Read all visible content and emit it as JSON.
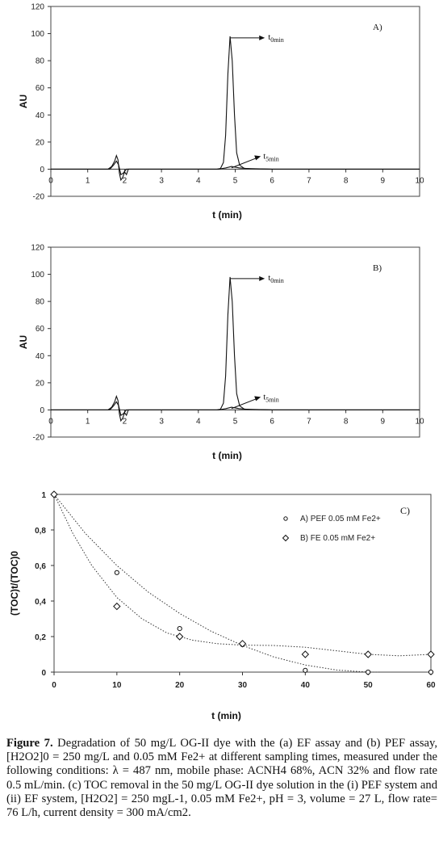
{
  "chart_data": [
    {
      "type": "line",
      "panel_label": "A)",
      "ylabel": "AU",
      "xlabel": "t (min)",
      "xlim": [
        0,
        10
      ],
      "ylim": [
        -20,
        120
      ],
      "x_ticks": [
        0,
        1,
        2,
        3,
        4,
        5,
        6,
        7,
        8,
        9,
        10
      ],
      "y_ticks": [
        -20,
        0,
        20,
        40,
        60,
        80,
        100,
        120
      ],
      "annotations": [
        "t0min",
        "t5min"
      ],
      "series": [
        {
          "values": [
            [
              0,
              0
            ],
            [
              1.55,
              0
            ],
            [
              1.65,
              2
            ],
            [
              1.73,
              6
            ],
            [
              1.78,
              10
            ],
            [
              1.82,
              7
            ],
            [
              1.86,
              -3
            ],
            [
              1.9,
              -8
            ],
            [
              1.95,
              -6
            ],
            [
              2.0,
              -2
            ],
            [
              2.05,
              -4
            ],
            [
              2.1,
              0
            ],
            [
              3.5,
              0
            ],
            [
              4.5,
              0
            ],
            [
              4.6,
              0.5
            ],
            [
              4.68,
              5
            ],
            [
              4.74,
              25
            ],
            [
              4.8,
              70
            ],
            [
              4.86,
              98
            ],
            [
              4.92,
              80
            ],
            [
              4.98,
              40
            ],
            [
              5.04,
              12
            ],
            [
              5.12,
              3
            ],
            [
              5.25,
              0.5
            ],
            [
              6,
              0
            ],
            [
              10,
              0
            ]
          ]
        },
        {
          "values": [
            [
              0,
              0
            ],
            [
              1.6,
              0
            ],
            [
              1.7,
              3
            ],
            [
              1.78,
              6
            ],
            [
              1.84,
              3
            ],
            [
              1.9,
              -4
            ],
            [
              1.96,
              -3
            ],
            [
              2.05,
              0
            ],
            [
              4.55,
              0
            ],
            [
              4.75,
              1
            ],
            [
              4.9,
              2
            ],
            [
              5.1,
              1
            ],
            [
              5.4,
              0.3
            ],
            [
              6,
              0
            ],
            [
              10,
              0
            ]
          ]
        }
      ]
    },
    {
      "type": "line",
      "panel_label": "B)",
      "ylabel": "AU",
      "xlabel": "t (min)",
      "xlim": [
        0,
        10
      ],
      "ylim": [
        -20,
        120
      ],
      "x_ticks": [
        0,
        1,
        2,
        3,
        4,
        5,
        6,
        7,
        8,
        9,
        10
      ],
      "y_ticks": [
        -20,
        0,
        20,
        40,
        60,
        80,
        100,
        120
      ],
      "annotations": [
        "t0min",
        "t5min"
      ],
      "series": [
        {
          "values": [
            [
              0,
              0
            ],
            [
              1.55,
              0
            ],
            [
              1.65,
              2
            ],
            [
              1.73,
              6
            ],
            [
              1.78,
              10
            ],
            [
              1.82,
              7
            ],
            [
              1.86,
              -3
            ],
            [
              1.9,
              -8
            ],
            [
              1.95,
              -6
            ],
            [
              2.0,
              -2
            ],
            [
              2.05,
              -4
            ],
            [
              2.1,
              0
            ],
            [
              3.5,
              0
            ],
            [
              4.5,
              0
            ],
            [
              4.6,
              0.5
            ],
            [
              4.68,
              5
            ],
            [
              4.74,
              25
            ],
            [
              4.8,
              70
            ],
            [
              4.86,
              98
            ],
            [
              4.92,
              80
            ],
            [
              4.98,
              40
            ],
            [
              5.04,
              12
            ],
            [
              5.12,
              3
            ],
            [
              5.25,
              0.5
            ],
            [
              6,
              0
            ],
            [
              10,
              0
            ]
          ]
        },
        {
          "values": [
            [
              0,
              0
            ],
            [
              1.6,
              0
            ],
            [
              1.7,
              3
            ],
            [
              1.78,
              6
            ],
            [
              1.84,
              3
            ],
            [
              1.9,
              -4
            ],
            [
              1.96,
              -3
            ],
            [
              2.05,
              0
            ],
            [
              4.55,
              0
            ],
            [
              4.75,
              1
            ],
            [
              4.9,
              2
            ],
            [
              5.1,
              1
            ],
            [
              5.4,
              0.3
            ],
            [
              6,
              0
            ],
            [
              10,
              0
            ]
          ]
        }
      ]
    },
    {
      "type": "scatter",
      "panel_label": "C)",
      "ylabel": "(TOC)t/(TOC)0",
      "xlabel": "t (min)",
      "xlim": [
        0,
        60
      ],
      "ylim": [
        0,
        1
      ],
      "x_ticks": [
        0,
        10,
        20,
        30,
        40,
        50,
        60
      ],
      "y_ticks": [
        "0",
        "0,2",
        "0,4",
        "0,6",
        "0,8",
        "1"
      ],
      "legend": {
        "position": "top-right"
      },
      "series": [
        {
          "name": "A) PEF 0.05 mM Fe2+",
          "marker": "circle",
          "x": [
            0,
            10,
            20,
            30,
            40,
            50,
            60
          ],
          "y": [
            1,
            0.56,
            0.245,
            0.155,
            0.01,
            0.0,
            0.0
          ]
        },
        {
          "name": "B) FE 0.05 mM Fe2+",
          "marker": "diamond",
          "x": [
            0,
            10,
            20,
            30,
            40,
            50,
            60
          ],
          "y": [
            1,
            0.37,
            0.2,
            0.16,
            0.1,
            0.1,
            0.1
          ]
        }
      ]
    }
  ],
  "caption": {
    "figure_label": "Figure 7.",
    "text": "Degradation of 50 mg/L OG-II dye with the (a) EF assay and (b) PEF assay, [H2O2]0 = 250 mg/L and 0.05 mM Fe2+ at different sampling times, measured under the following conditions: λ = 487 nm, mobile phase: ACNH4 68%, ACN 32% and flow rate 0.5 mL/min. (c) TOC removal in the 50 mg/L OG-II dye solution in the (i) PEF system and (ii) EF system, [H2O2] = 250 mgL-1, 0.05 mM Fe2+, pH = 3, volume = 27 L, flow rate= 76 L/h, current density = 300 mA/cm2."
  }
}
